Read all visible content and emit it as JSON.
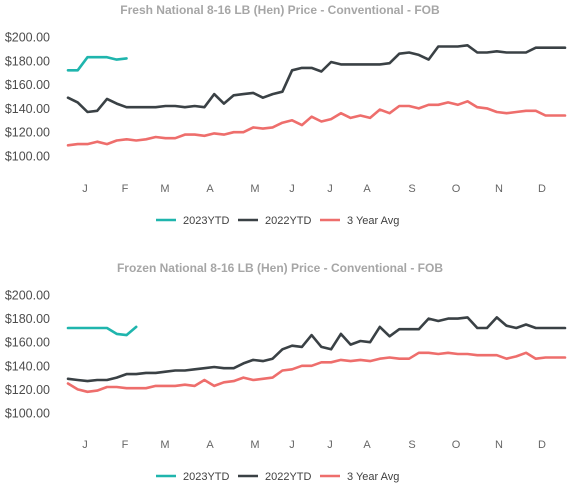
{
  "chart_data": [
    {
      "type": "line",
      "title": "Fresh National 8-16 LB (Hen) Price - Conventional - FOB",
      "xlabel": "",
      "ylabel": "",
      "x_tick_labels": [
        "J",
        "F",
        "M",
        "A",
        "M",
        "J",
        "J",
        "A",
        "S",
        "O",
        "N",
        "D"
      ],
      "y_tick_labels": [
        "$200.00",
        "$180.00",
        "$160.00",
        "$140.00",
        "$120.00",
        "$100.00"
      ],
      "y_ticks": [
        200,
        180,
        160,
        140,
        120,
        100
      ],
      "ylim": [
        100,
        200
      ],
      "xlim": [
        1,
        52
      ],
      "grid": false,
      "legend_position": "bottom",
      "series": [
        {
          "name": "2023YTD",
          "color": "#1fb5ad",
          "x": [
            1,
            2,
            3,
            4,
            5,
            6,
            7
          ],
          "values": [
            172,
            172,
            183,
            183,
            183,
            181,
            182
          ]
        },
        {
          "name": "2022YTD",
          "color": "#3a4145",
          "x": [
            1,
            2,
            3,
            4,
            5,
            6,
            7,
            8,
            9,
            10,
            11,
            12,
            13,
            14,
            15,
            16,
            17,
            18,
            19,
            20,
            21,
            22,
            23,
            24,
            25,
            26,
            27,
            28,
            29,
            30,
            31,
            32,
            33,
            34,
            35,
            36,
            37,
            38,
            39,
            40,
            41,
            42,
            43,
            44,
            45,
            46,
            47,
            48,
            49,
            50,
            51,
            52
          ],
          "values": [
            149,
            145,
            137,
            138,
            148,
            144,
            141,
            141,
            141,
            141,
            142,
            142,
            141,
            142,
            141,
            152,
            144,
            151,
            152,
            153,
            149,
            152,
            154,
            172,
            174,
            174,
            171,
            179,
            177,
            177,
            177,
            177,
            177,
            178,
            186,
            187,
            185,
            181,
            192,
            192,
            192,
            193,
            187,
            187,
            188,
            187,
            187,
            187,
            191,
            191,
            191,
            191
          ]
        },
        {
          "name": "3 Year Avg",
          "color": "#ee6e6c",
          "x": [
            1,
            2,
            3,
            4,
            5,
            6,
            7,
            8,
            9,
            10,
            11,
            12,
            13,
            14,
            15,
            16,
            17,
            18,
            19,
            20,
            21,
            22,
            23,
            24,
            25,
            26,
            27,
            28,
            29,
            30,
            31,
            32,
            33,
            34,
            35,
            36,
            37,
            38,
            39,
            40,
            41,
            42,
            43,
            44,
            45,
            46,
            47,
            48,
            49,
            50,
            51,
            52
          ],
          "values": [
            109,
            110,
            110,
            112,
            110,
            113,
            114,
            113,
            114,
            116,
            115,
            115,
            118,
            118,
            117,
            119,
            118,
            120,
            120,
            124,
            123,
            124,
            128,
            130,
            126,
            133,
            129,
            131,
            136,
            132,
            134,
            132,
            139,
            136,
            142,
            142,
            140,
            143,
            143,
            145,
            143,
            146,
            141,
            140,
            137,
            136,
            137,
            138,
            138,
            134,
            134,
            134
          ]
        }
      ]
    },
    {
      "type": "line",
      "title": "Frozen National 8-16 LB (Hen) Price - Conventional - FOB",
      "xlabel": "",
      "ylabel": "",
      "x_tick_labels": [
        "J",
        "F",
        "M",
        "A",
        "M",
        "J",
        "J",
        "A",
        "S",
        "O",
        "N",
        "D"
      ],
      "y_tick_labels": [
        "$200.00",
        "$180.00",
        "$160.00",
        "$140.00",
        "$120.00",
        "$100.00"
      ],
      "y_ticks": [
        200,
        180,
        160,
        140,
        120,
        100
      ],
      "ylim": [
        100,
        200
      ],
      "xlim": [
        1,
        52
      ],
      "grid": false,
      "legend_position": "bottom",
      "series": [
        {
          "name": "2023YTD",
          "color": "#1fb5ad",
          "x": [
            1,
            2,
            3,
            4,
            5,
            6,
            7,
            8
          ],
          "values": [
            172,
            172,
            172,
            172,
            172,
            167,
            166,
            173
          ]
        },
        {
          "name": "2022YTD",
          "color": "#3a4145",
          "x": [
            1,
            2,
            3,
            4,
            5,
            6,
            7,
            8,
            9,
            10,
            11,
            12,
            13,
            14,
            15,
            16,
            17,
            18,
            19,
            20,
            21,
            22,
            23,
            24,
            25,
            26,
            27,
            28,
            29,
            30,
            31,
            32,
            33,
            34,
            35,
            36,
            37,
            38,
            39,
            40,
            41,
            42,
            43,
            44,
            45,
            46,
            47,
            48,
            49,
            50,
            51,
            52
          ],
          "values": [
            129,
            128,
            127,
            128,
            128,
            130,
            133,
            133,
            134,
            134,
            135,
            136,
            136,
            137,
            138,
            139,
            138,
            138,
            142,
            145,
            144,
            146,
            154,
            157,
            156,
            166,
            156,
            154,
            167,
            158,
            161,
            160,
            173,
            165,
            171,
            171,
            171,
            180,
            178,
            180,
            180,
            181,
            172,
            172,
            181,
            174,
            172,
            175,
            172,
            172,
            172,
            172
          ]
        },
        {
          "name": "3 Year Avg",
          "color": "#ee6e6c",
          "x": [
            1,
            2,
            3,
            4,
            5,
            6,
            7,
            8,
            9,
            10,
            11,
            12,
            13,
            14,
            15,
            16,
            17,
            18,
            19,
            20,
            21,
            22,
            23,
            24,
            25,
            26,
            27,
            28,
            29,
            30,
            31,
            32,
            33,
            34,
            35,
            36,
            37,
            38,
            39,
            40,
            41,
            42,
            43,
            44,
            45,
            46,
            47,
            48,
            49,
            50,
            51,
            52
          ],
          "values": [
            125,
            120,
            118,
            119,
            122,
            122,
            121,
            121,
            121,
            123,
            123,
            123,
            124,
            123,
            128,
            123,
            126,
            127,
            130,
            128,
            129,
            130,
            136,
            137,
            140,
            140,
            143,
            143,
            145,
            144,
            145,
            144,
            146,
            147,
            146,
            146,
            151,
            151,
            150,
            151,
            150,
            150,
            149,
            149,
            149,
            146,
            148,
            151,
            146,
            147,
            147,
            147
          ]
        }
      ]
    }
  ]
}
